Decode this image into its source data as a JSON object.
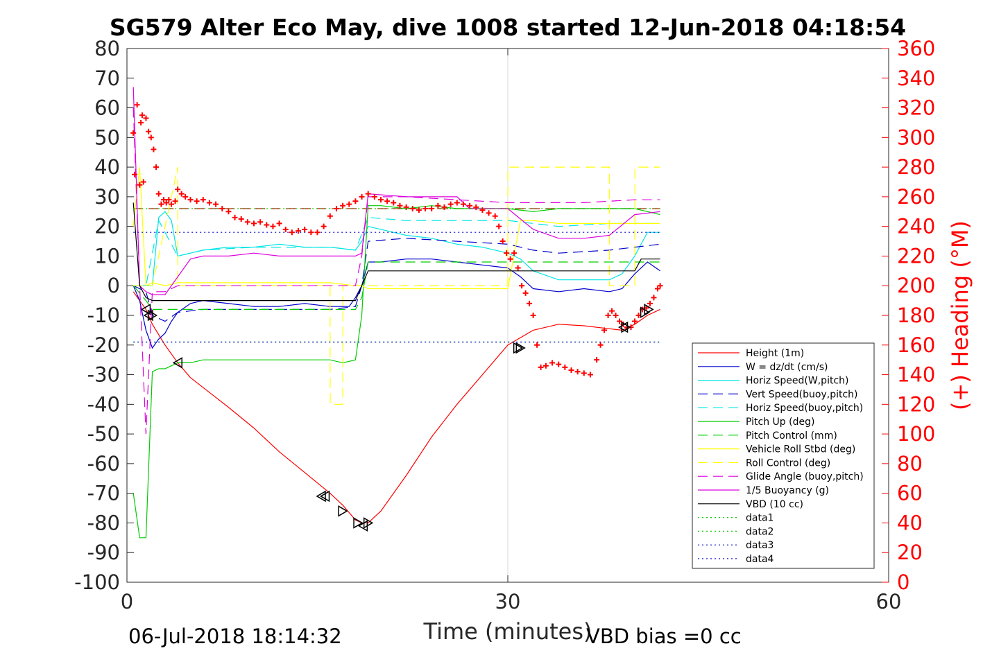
{
  "chart_data": {
    "type": "line",
    "title": "SG579 Alter Eco May, dive 1008 started 12-Jun-2018 04:18:54",
    "xlabel": "Time (minutes)",
    "ylabel": "",
    "y2label": "(+) Heading (°M)",
    "xlim": [
      0,
      60
    ],
    "ylim": [
      -100,
      80
    ],
    "y2lim": [
      0,
      360
    ],
    "xticks": [
      "0",
      "30",
      "60"
    ],
    "yticks": [
      "80",
      "70",
      "60",
      "50",
      "40",
      "30",
      "20",
      "10",
      "0",
      "-10",
      "-20",
      "-30",
      "-40",
      "-50",
      "-60",
      "-70",
      "-80",
      "-90",
      "-100"
    ],
    "y2ticks": [
      "360",
      "340",
      "320",
      "300",
      "280",
      "260",
      "240",
      "220",
      "200",
      "180",
      "160",
      "140",
      "120",
      "100",
      "80",
      "60",
      "40",
      "20",
      "0"
    ],
    "grid": "x-only at 30",
    "legend_position": "bottom-right",
    "footer_left": "06-Jul-2018 18:14:32",
    "footer_right": "VBD bias =0 cc",
    "colors": {
      "height": "#ff0000",
      "w": "#0000cc",
      "horiz": "#00e5e5",
      "vert_buoy": "#0000cc",
      "horiz_buoy": "#00e5e5",
      "pitch": "#00cc00",
      "pitch_ctrl": "#00cc00",
      "roll": "#ffff00",
      "roll_ctrl": "#ffff00",
      "glide": "#dd00dd",
      "buoy": "#dd00dd",
      "vbd": "#000000",
      "data1": "#00cc00",
      "data2": "#00cc00",
      "data3": "#0000cc",
      "data4": "#0000cc",
      "heading": "#ff0000"
    },
    "series": [
      {
        "name": "Height (1m)",
        "key": "height",
        "style": "solid",
        "x": [
          0.5,
          1.5,
          2.0,
          3.0,
          4.0,
          5.0,
          6.5,
          8.0,
          10.0,
          12.0,
          14.0,
          16.0,
          17.0,
          18.0,
          18.5,
          19.0,
          20.0,
          22.0,
          24.0,
          26.0,
          28.0,
          30.0,
          32.0,
          34.0,
          36.0,
          38.0,
          39.0,
          40.0,
          41.0,
          42.0
        ],
        "y": [
          -2,
          -8,
          -13,
          -20,
          -26,
          -31,
          -36,
          -41,
          -48,
          -56,
          -63,
          -70,
          -74,
          -79,
          -80,
          -80,
          -76,
          -64,
          -51,
          -40,
          -30,
          -20,
          -15,
          -13,
          -13.5,
          -14.5,
          -15,
          -13,
          -10,
          -8
        ]
      },
      {
        "name": "W = dz/dt (cm/s)",
        "key": "w",
        "style": "solid",
        "x": [
          0.5,
          1.0,
          1.5,
          2.0,
          2.5,
          3.0,
          3.5,
          4.0,
          5.0,
          6.0,
          8.0,
          10.0,
          12.0,
          14.0,
          16.0,
          17.5,
          18.0,
          18.5,
          19.0,
          20.0,
          22.0,
          24.0,
          26.0,
          28.0,
          30.0,
          31.0,
          32.0,
          34.0,
          36.0,
          38.0,
          39.0,
          40.0,
          41.0,
          42.0
        ],
        "y": [
          0,
          -5,
          -15,
          -21,
          -18,
          -16,
          -12,
          -9,
          -6,
          -5,
          -6,
          -7,
          -7,
          -6,
          -7,
          -7,
          -4,
          0,
          8,
          8,
          9,
          9,
          8,
          7,
          6,
          3,
          -1,
          -2,
          -1,
          -2,
          -1,
          4,
          8,
          5
        ]
      },
      {
        "name": "Horiz Speed(W,pitch)",
        "key": "horiz",
        "style": "solid",
        "x": [
          0.5,
          1.0,
          1.5,
          2.0,
          2.5,
          3.0,
          3.5,
          4.0,
          5.0,
          6.0,
          8.0,
          10.0,
          12.0,
          14.0,
          16.0,
          18.0,
          18.5,
          19.0,
          20.0,
          22.0,
          24.0,
          26.0,
          28.0,
          30.0,
          31.0,
          32.0,
          34.0,
          36.0,
          38.0,
          39.0,
          40.0,
          41.0,
          42.0
        ],
        "y": [
          0,
          0,
          0,
          0,
          23,
          25,
          22,
          10,
          11,
          12,
          13,
          13,
          14,
          13,
          13,
          12,
          15,
          20,
          19,
          17,
          16,
          14,
          13,
          11,
          9,
          5,
          2,
          2,
          2,
          4,
          10,
          18,
          18
        ]
      },
      {
        "name": "Vert Speed(buoy,pitch)",
        "key": "vert_buoy",
        "style": "dashed",
        "x": [
          0.5,
          1.5,
          2.0,
          3.0,
          4.0,
          6.0,
          10.0,
          16.0,
          18.0,
          18.5,
          19.0,
          22.0,
          26.0,
          30.0,
          32.0,
          34.0,
          38.0,
          40.0,
          42.0
        ],
        "y": [
          0,
          -2,
          -10,
          -12,
          -9,
          -8,
          -8,
          -8,
          -7,
          0,
          15,
          16,
          15,
          14,
          12,
          11,
          12,
          13,
          14
        ]
      },
      {
        "name": "Horiz Speed(buoy,pitch)",
        "key": "horiz_buoy",
        "style": "dashed",
        "x": [
          0.5,
          1.5,
          2.5,
          4.0,
          6.0,
          10.0,
          16.0,
          18.0,
          19.0,
          22.0,
          26.0,
          30.0,
          32.0,
          34.0,
          38.0,
          40.0,
          42.0
        ],
        "y": [
          0,
          0,
          22,
          10,
          12,
          13,
          13,
          12,
          23,
          22,
          22,
          22,
          21,
          20,
          21,
          21,
          21
        ]
      },
      {
        "name": "Pitch Up (deg)",
        "key": "pitch",
        "style": "solid",
        "x": [
          0.5,
          1.0,
          1.5,
          2.0,
          2.5,
          3.0,
          3.5,
          4.0,
          5.0,
          6.0,
          8.0,
          10.0,
          12.0,
          14.0,
          16.0,
          17.0,
          18.0,
          18.5,
          19.0,
          20.0,
          22.0,
          24.0,
          26.0,
          28.0,
          30.0,
          32.0,
          34.0,
          36.0,
          38.0,
          40.0,
          42.0
        ],
        "y": [
          -70,
          -85,
          -85,
          -29,
          -28,
          -28,
          -27,
          -26,
          -26,
          -25,
          -25,
          -25,
          -25,
          -25,
          -25,
          -26,
          -25,
          -10,
          27,
          27,
          26,
          27,
          26,
          26,
          26,
          25,
          26,
          26,
          26,
          26,
          24
        ]
      },
      {
        "name": "Pitch Control (mm)",
        "key": "pitch_ctrl",
        "style": "dashed",
        "x": [
          0.5,
          1.5,
          2.0,
          18.0,
          18.5,
          19.0,
          40.0,
          42.0
        ],
        "y": [
          0,
          -5,
          -8,
          -8,
          -4,
          8,
          8,
          8
        ]
      },
      {
        "name": "Vehicle Roll Stbd (deg)",
        "key": "roll",
        "style": "solid",
        "x": [
          0.5,
          1.0,
          1.5,
          2.0,
          3.0,
          4.0,
          6.0,
          10.0,
          16.0,
          18.0,
          18.5,
          19.0,
          22.0,
          26.0,
          30.0,
          31.0,
          32.0,
          34.0,
          36.0,
          38.0,
          40.0,
          42.0
        ],
        "y": [
          20,
          40,
          0,
          1,
          0,
          1,
          1,
          1,
          1,
          0,
          0,
          -1,
          -1,
          -1,
          -1,
          22,
          22,
          21,
          21,
          21,
          21,
          21
        ]
      },
      {
        "name": "Roll Control (deg)",
        "key": "roll_ctrl",
        "style": "dashed",
        "x": [
          0.5,
          2.0,
          4.0,
          4.01,
          16.0,
          16.01,
          17.0,
          17.01,
          18.0,
          30.0,
          30.01,
          38.0,
          38.01,
          40.0,
          40.01,
          42.0
        ],
        "y": [
          0,
          0,
          40,
          0,
          0,
          -40,
          -40,
          0,
          0,
          0,
          40,
          40,
          0,
          0,
          40,
          40
        ]
      },
      {
        "name": "Glide Angle (buoy,pitch)",
        "key": "glide",
        "style": "dashed",
        "x": [
          0.5,
          1.0,
          1.5,
          2.0,
          3.0,
          4.0,
          8.0,
          16.0,
          18.0,
          18.5,
          19.0,
          22.0,
          26.0,
          30.0,
          32.0,
          36.0,
          40.0,
          42.0
        ],
        "y": [
          60,
          0,
          -50,
          -2,
          -2,
          0,
          0,
          0,
          0,
          10,
          30,
          30,
          29,
          28,
          28,
          28,
          29,
          29
        ]
      },
      {
        "name": "1/5 Buoyancy (g)",
        "key": "buoy",
        "style": "solid",
        "x": [
          0.5,
          1.0,
          1.5,
          2.0,
          3.0,
          4.0,
          5.0,
          6.0,
          8.0,
          10.0,
          12.0,
          16.0,
          18.0,
          18.5,
          19.0,
          22.0,
          26.0,
          27.0,
          30.0,
          32.0,
          34.0,
          36.0,
          38.0,
          40.0,
          42.0
        ],
        "y": [
          67,
          0,
          -2,
          -3,
          -3,
          3,
          9,
          10,
          10,
          11,
          10,
          10,
          10,
          11,
          31,
          30,
          30,
          26,
          26,
          19,
          16,
          16,
          17,
          24,
          25
        ]
      },
      {
        "name": "VBD (10 cc)",
        "key": "vbd",
        "style": "solid",
        "x": [
          0.5,
          1.0,
          1.5,
          2.0,
          4.0,
          10.0,
          16.0,
          18.0,
          18.5,
          19.0,
          30.0,
          40.0,
          40.5,
          42.0
        ],
        "y": [
          28,
          0,
          -4,
          -5,
          -5,
          -5,
          -5,
          -5,
          0,
          5,
          5,
          5,
          9,
          9
        ]
      },
      {
        "name": "data1",
        "key": "data1",
        "style": "dotted",
        "x": [
          0.5,
          42.0
        ],
        "y": [
          26,
          26
        ]
      },
      {
        "name": "data2",
        "key": "data2",
        "style": "dotted",
        "x": [
          0.5,
          42.0
        ],
        "y": [
          -19,
          -19
        ]
      },
      {
        "name": "data3",
        "key": "data3",
        "style": "dotted",
        "x": [
          0.5,
          42.0
        ],
        "y": [
          18,
          18
        ]
      },
      {
        "name": "data4",
        "key": "data4",
        "style": "dotted",
        "x": [
          0.5,
          42.0
        ],
        "y": [
          -19,
          -19
        ]
      }
    ],
    "reference_line": {
      "key": "ref_dash",
      "color": "#cc0000",
      "style": "dashed",
      "x": [
        0.5,
        42.0
      ],
      "y": [
        26,
        26
      ]
    },
    "heading": {
      "axis": "right",
      "marker": "+",
      "x": [
        0.5,
        0.6,
        0.8,
        1.0,
        1.1,
        1.2,
        1.3,
        1.5,
        1.7,
        1.9,
        2.1,
        2.3,
        2.5,
        2.7,
        2.9,
        3.1,
        3.3,
        3.5,
        3.8,
        4.0,
        4.3,
        4.6,
        5.0,
        5.5,
        6.0,
        6.5,
        7.0,
        7.5,
        8.0,
        8.5,
        9.0,
        9.5,
        10.0,
        10.5,
        11.0,
        11.5,
        12.0,
        12.5,
        13.0,
        13.5,
        14.0,
        14.5,
        15.0,
        15.5,
        16.0,
        16.5,
        17.0,
        17.5,
        18.0,
        18.5,
        19.0,
        19.5,
        20.0,
        20.5,
        21.0,
        21.5,
        22.0,
        22.5,
        23.0,
        23.5,
        24.0,
        24.5,
        25.0,
        25.5,
        26.0,
        26.5,
        27.0,
        27.5,
        28.0,
        28.5,
        29.0,
        29.3,
        29.6,
        29.9,
        30.2,
        30.5,
        30.8,
        31.1,
        31.4,
        31.7,
        32.0,
        32.3,
        32.6,
        33.0,
        33.5,
        34.0,
        34.5,
        35.0,
        35.5,
        36.0,
        36.5,
        37.0,
        37.3,
        37.6,
        37.9,
        38.2,
        38.5,
        38.8,
        39.1,
        39.4,
        39.7,
        40.0,
        40.3,
        40.6,
        40.9,
        41.2,
        41.5,
        41.8,
        42.0
      ],
      "y": [
        303,
        275,
        322,
        268,
        310,
        315,
        270,
        313,
        304,
        300,
        292,
        280,
        262,
        255,
        258,
        256,
        258,
        255,
        257,
        265,
        262,
        260,
        258,
        257,
        258,
        256,
        255,
        252,
        250,
        246,
        245,
        243,
        242,
        243,
        241,
        240,
        242,
        238,
        236,
        237,
        238,
        236,
        236,
        240,
        247,
        252,
        254,
        255,
        257,
        260,
        262,
        260,
        258,
        257,
        256,
        254,
        253,
        252,
        251,
        252,
        252,
        254,
        253,
        255,
        256,
        255,
        254,
        253,
        251,
        249,
        247,
        240,
        230,
        222,
        218,
        222,
        212,
        200,
        195,
        188,
        180,
        160,
        145,
        146,
        148,
        147,
        145,
        143,
        142,
        141,
        140,
        150,
        160,
        170,
        180,
        183,
        180,
        176,
        174,
        172,
        172,
        176,
        180,
        184,
        185,
        188,
        192,
        198,
        200
      ]
    },
    "turn_markers": {
      "x": [
        1.5,
        1.7,
        2.0,
        4.0,
        15.3,
        15.6,
        17.0,
        18.2,
        18.6,
        19.0,
        30.8,
        31.0,
        39.1,
        39.3,
        40.8,
        41.1
      ],
      "y": [
        -8,
        -10,
        -10,
        -26,
        -71,
        -71,
        -76,
        -80,
        -81,
        -80,
        -21,
        -21,
        -14,
        -14,
        -9,
        -8
      ],
      "direction": [
        "left",
        "left",
        "right",
        "left",
        "left",
        "left",
        "right",
        "right",
        "left",
        "right",
        "right",
        "right",
        "left",
        "right",
        "right",
        "right"
      ]
    }
  }
}
